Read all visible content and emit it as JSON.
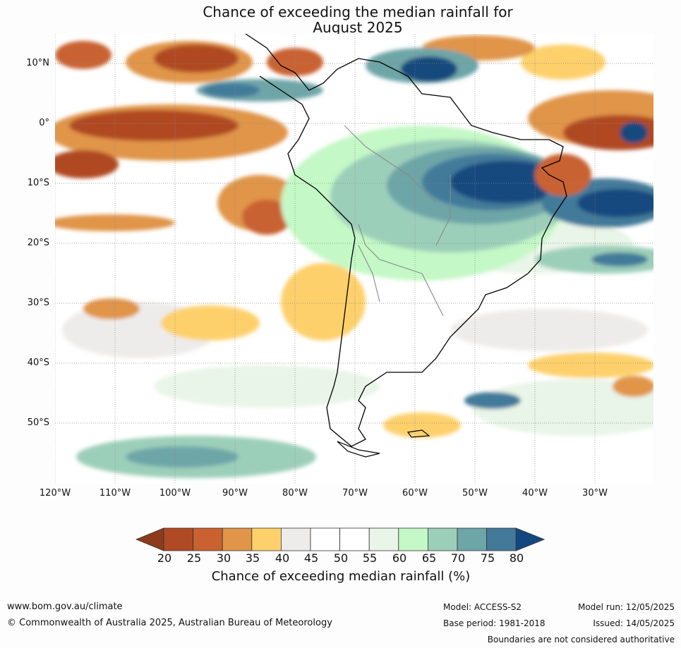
{
  "title_line1": "Chance of exceeding the median rainfall for",
  "title_line2": "August 2025",
  "lat_labels": [
    "10°N",
    "0°",
    "10°S",
    "20°S",
    "30°S",
    "40°S",
    "50°S"
  ],
  "lon_labels": [
    "120°W",
    "110°W",
    "100°W",
    "90°W",
    "80°W",
    "70°W",
    "60°W",
    "50°W",
    "40°W",
    "30°W"
  ],
  "colorbar": {
    "ticks": [
      "20",
      "25",
      "30",
      "35",
      "40",
      "45",
      "50",
      "55",
      "60",
      "65",
      "70",
      "75",
      "80"
    ],
    "colors": [
      "#8e3a1c",
      "#b04a24",
      "#c96230",
      "#e09548",
      "#fdd06c",
      "#eeecea",
      "#ffffff",
      "#ffffff",
      "#e8f5e8",
      "#c4f8c6",
      "#9ccfb9",
      "#6ea5a7",
      "#437a9a",
      "#13487e"
    ],
    "title": "Chance of exceeding median rainfall (%)"
  },
  "footer": {
    "website": "www.bom.gov.au/climate",
    "copyright": "© Commonwealth of Australia 2025, Australian Bureau of Meteorology",
    "model": "Model: ACCESS-S2",
    "base_period": "Base period: 1981-2018",
    "model_run": "Model run: 12/05/2025",
    "issued": "Issued: 14/05/2025",
    "disclaimer": "Boundaries are not considered authoritative"
  }
}
